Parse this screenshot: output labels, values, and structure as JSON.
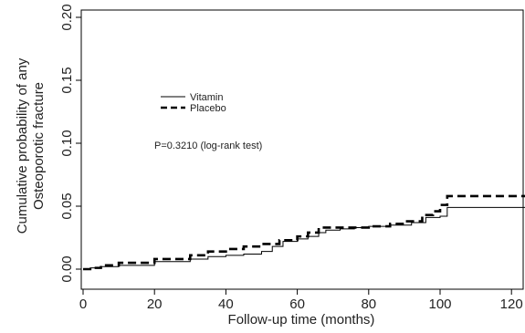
{
  "chart_data": {
    "type": "line",
    "step": true,
    "xlabel": "Follow-up time (months)",
    "ylabel": [
      "Cumulative probability of any",
      "Osteoporotic fracture"
    ],
    "xlim": [
      0,
      130
    ],
    "ylim": [
      0,
      0.2
    ],
    "xticks": [
      0,
      20,
      40,
      60,
      80,
      100,
      120
    ],
    "yticks": [
      "0.00",
      "0.05",
      "0.10",
      "0.15",
      "0.20"
    ],
    "ytick_values": [
      0,
      0.05,
      0.1,
      0.15,
      0.2
    ],
    "annotation": "P=0.3210 (log-rank test)",
    "legend_position": "upper-left, inside plot area",
    "series": [
      {
        "name": "Vitamin",
        "line_style": "solid",
        "color": "#000000",
        "x": [
          0,
          2,
          5,
          10,
          20,
          30,
          35,
          40,
          45,
          50,
          53,
          56,
          60,
          63,
          66,
          68,
          72,
          76,
          80,
          86,
          92,
          96,
          100,
          102,
          126
        ],
        "y": [
          0,
          0.001,
          0.002,
          0.003,
          0.006,
          0.008,
          0.01,
          0.011,
          0.012,
          0.014,
          0.018,
          0.022,
          0.024,
          0.026,
          0.029,
          0.031,
          0.032,
          0.033,
          0.034,
          0.035,
          0.037,
          0.041,
          0.042,
          0.049,
          0.049
        ]
      },
      {
        "name": "Placebo",
        "line_style": "dashed",
        "color": "#000000",
        "x": [
          0,
          2,
          5,
          10,
          20,
          30,
          35,
          40,
          45,
          50,
          55,
          60,
          63,
          66,
          70,
          75,
          80,
          86,
          90,
          95,
          98,
          100,
          102,
          126
        ],
        "y": [
          0,
          0.001,
          0.003,
          0.005,
          0.008,
          0.011,
          0.014,
          0.016,
          0.018,
          0.02,
          0.023,
          0.026,
          0.029,
          0.033,
          0.033,
          0.033,
          0.034,
          0.036,
          0.038,
          0.043,
          0.046,
          0.051,
          0.058,
          0.058
        ]
      }
    ]
  }
}
